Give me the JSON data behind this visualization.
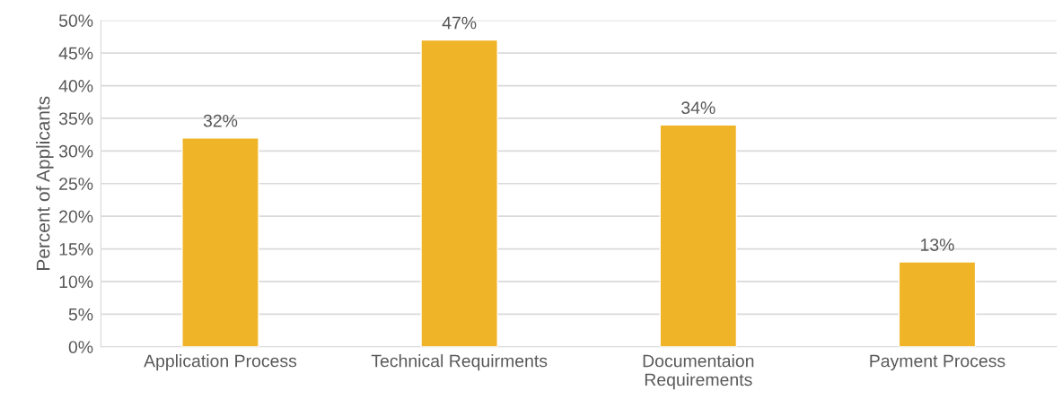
{
  "chart_data": {
    "type": "bar",
    "ylabel": "Percent of Applicants",
    "categories": [
      "Application Process",
      "Technical Requirments",
      "Documentaion Requirements",
      "Payment Process"
    ],
    "values": [
      32,
      47,
      34,
      13
    ],
    "value_labels": [
      "32%",
      "47%",
      "34%",
      "13%"
    ],
    "color": "#f0b429",
    "ylim": [
      0,
      50
    ],
    "yticks": [
      {
        "value": 0,
        "label": "0%"
      },
      {
        "value": 5,
        "label": "5%"
      },
      {
        "value": 10,
        "label": "10%"
      },
      {
        "value": 15,
        "label": "15%"
      },
      {
        "value": 20,
        "label": "20%"
      },
      {
        "value": 25,
        "label": "25%"
      },
      {
        "value": 30,
        "label": "30%"
      },
      {
        "value": 35,
        "label": "35%"
      },
      {
        "value": 40,
        "label": "40%"
      },
      {
        "value": 45,
        "label": "45%"
      },
      {
        "value": 50,
        "label": "50%"
      }
    ],
    "grid": "y",
    "legend": false
  }
}
